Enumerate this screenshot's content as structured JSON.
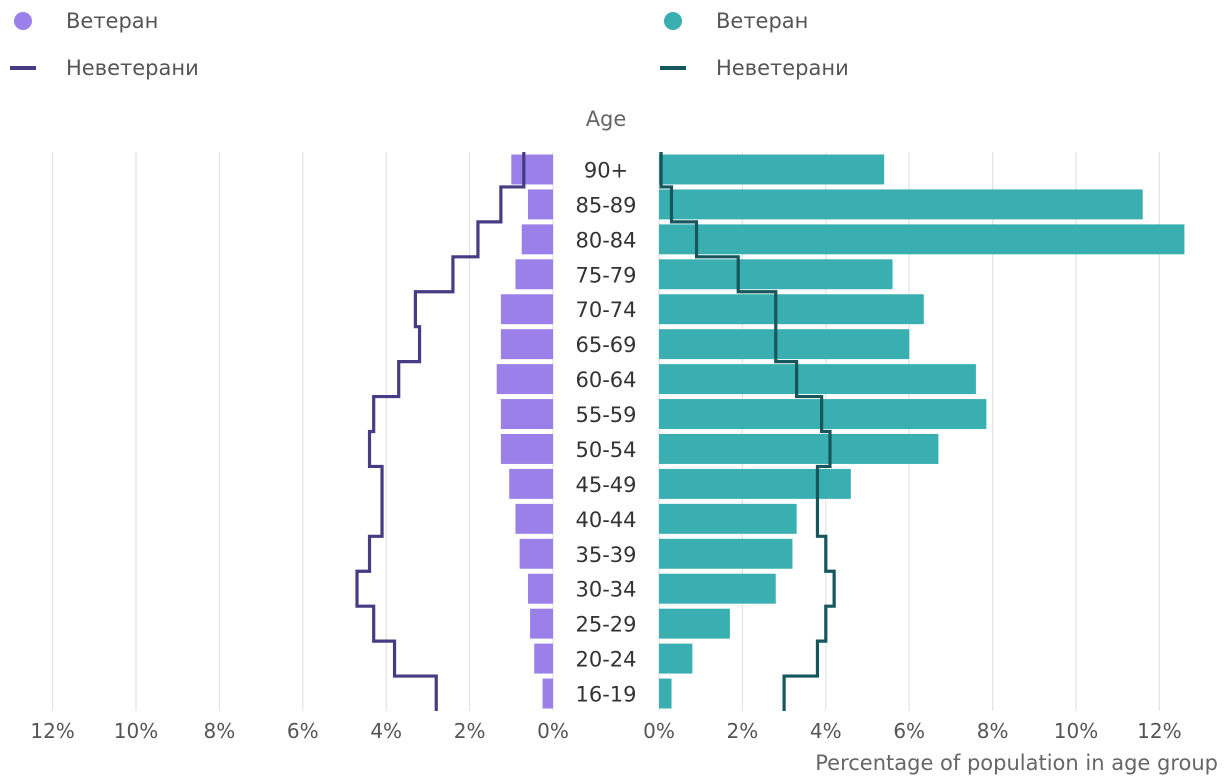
{
  "legend_left": [
    {
      "label": "Ветеран",
      "kind": "dot",
      "color": "#9a80e8"
    },
    {
      "label": "Неветерани",
      "kind": "line",
      "color": "#473b83"
    }
  ],
  "legend_right": [
    {
      "label": "Ветеран",
      "kind": "dot",
      "color": "#3aafb1"
    },
    {
      "label": "Неветерани",
      "kind": "line",
      "color": "#15575c"
    }
  ],
  "chart_data": {
    "type": "bar",
    "subtype": "population-pyramid",
    "ylabel": "Age",
    "xlabel": "Percentage of population in age group",
    "categories": [
      "90+",
      "85-89",
      "80-84",
      "75-79",
      "70-74",
      "65-69",
      "60-64",
      "55-59",
      "50-54",
      "45-49",
      "40-44",
      "35-39",
      "30-34",
      "25-29",
      "20-24",
      "16-19"
    ],
    "xlim": [
      0,
      12
    ],
    "x_ticks": [
      "0%",
      "2%",
      "4%",
      "6%",
      "8%",
      "10%",
      "12%"
    ],
    "grid": true,
    "left_panel": {
      "series": [
        {
          "name": "Ветеран",
          "kind": "bar",
          "color": "#9a80e8",
          "values": [
            1.0,
            0.6,
            0.75,
            0.9,
            1.25,
            1.25,
            1.35,
            1.25,
            1.25,
            1.05,
            0.9,
            0.8,
            0.6,
            0.55,
            0.45,
            0.25
          ]
        },
        {
          "name": "Неветерани",
          "kind": "step-line",
          "color": "#473b83",
          "values": [
            0.7,
            1.25,
            1.8,
            2.4,
            3.3,
            3.2,
            3.7,
            4.3,
            4.4,
            4.1,
            4.1,
            4.4,
            4.7,
            4.3,
            3.8,
            2.8
          ]
        }
      ]
    },
    "right_panel": {
      "series": [
        {
          "name": "Ветеран",
          "kind": "bar",
          "color": "#3aafb1",
          "values": [
            5.4,
            11.6,
            12.6,
            5.6,
            6.35,
            6.0,
            7.6,
            7.85,
            6.7,
            4.6,
            3.3,
            3.2,
            2.8,
            1.7,
            0.8,
            0.3
          ]
        },
        {
          "name": "Неветерани",
          "kind": "step-line",
          "color": "#15575c",
          "values": [
            0.05,
            0.3,
            0.9,
            1.9,
            2.8,
            2.8,
            3.3,
            3.9,
            4.1,
            3.8,
            3.8,
            4.0,
            4.2,
            4.0,
            3.8,
            3.0
          ]
        }
      ]
    }
  }
}
